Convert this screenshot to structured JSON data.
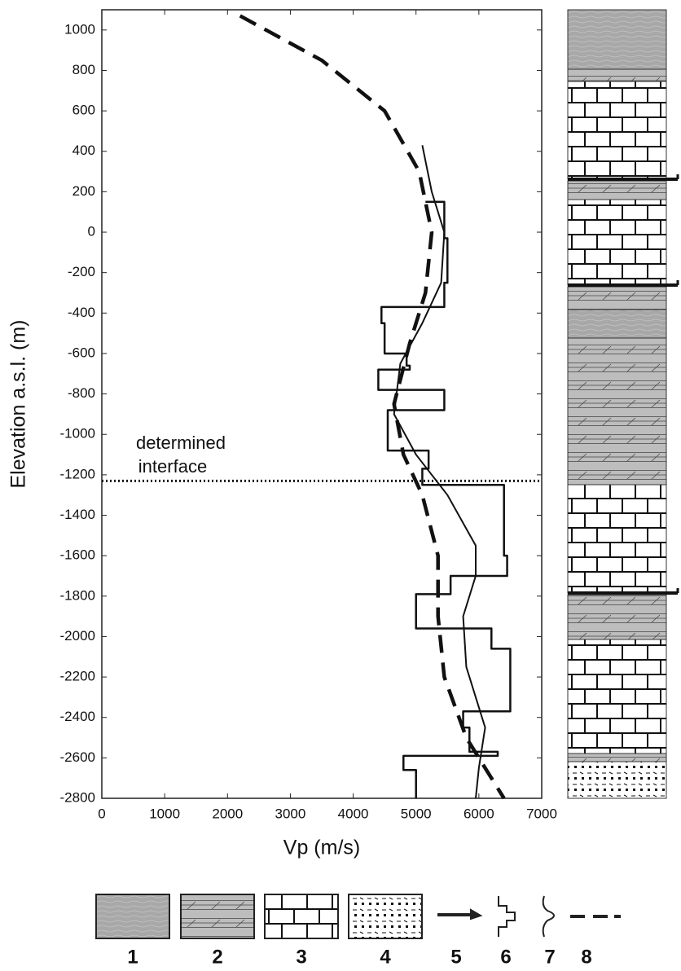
{
  "chart_data": {
    "type": "line",
    "xlabel": "Vp (m/s)",
    "ylabel": "Elevation a.s.l. (m)",
    "xlim": [
      0,
      7000
    ],
    "ylim": [
      -2800,
      1100
    ],
    "xticks": [
      0,
      1000,
      2000,
      3000,
      4000,
      5000,
      6000,
      7000
    ],
    "yticks": [
      -2800,
      -2600,
      -2400,
      -2200,
      -2000,
      -1800,
      -1600,
      -1400,
      -1200,
      -1000,
      -800,
      -600,
      -400,
      -200,
      0,
      200,
      400,
      600,
      800,
      1000
    ],
    "interface_elevation": -1230,
    "annotation_lines": [
      "determined",
      "interface"
    ],
    "legend_labels": [
      "1",
      "2",
      "3",
      "4",
      "5",
      "6",
      "7",
      "8"
    ],
    "series": [
      {
        "style": "step",
        "color": "#111111",
        "x": [
          5150,
          5450,
          5450,
          5500,
          5500,
          5450,
          5450,
          4450,
          4450,
          4500,
          4500,
          4850,
          4850,
          4900,
          4900,
          4400,
          4400,
          5450,
          5450,
          4550,
          4550,
          5200,
          5200,
          5100,
          5100,
          6400,
          6400,
          6450,
          6450,
          5550,
          5550,
          5000,
          5000,
          6200,
          6200,
          6500,
          6500,
          5750,
          5750,
          5850,
          5850,
          6300,
          6300,
          4800,
          4800,
          5000,
          5000
        ],
        "y": [
          150,
          150,
          -30,
          -30,
          -250,
          -250,
          -370,
          -370,
          -450,
          -450,
          -600,
          -600,
          -660,
          -660,
          -680,
          -680,
          -780,
          -780,
          -880,
          -880,
          -1080,
          -1080,
          -1170,
          -1170,
          -1250,
          -1250,
          -1600,
          -1600,
          -1700,
          -1700,
          -1790,
          -1790,
          -1960,
          -1960,
          -2060,
          -2060,
          -2370,
          -2370,
          -2450,
          -2450,
          -2570,
          -2570,
          -2590,
          -2590,
          -2660,
          -2660,
          -2800
        ]
      },
      {
        "style": "smooth",
        "color": "#111111",
        "x": [
          5100,
          5250,
          5450,
          5400,
          5100,
          4750,
          4650,
          5000,
          5500,
          5950,
          5950,
          5750,
          5800,
          6100,
          6000,
          5950
        ],
        "y": [
          430,
          200,
          0,
          -250,
          -450,
          -650,
          -900,
          -1100,
          -1300,
          -1550,
          -1700,
          -1900,
          -2150,
          -2450,
          -2650,
          -2800
        ]
      },
      {
        "style": "dashed",
        "color": "#111111",
        "x": [
          2200,
          3500,
          4500,
          5050,
          5250,
          5150,
          4900,
          4650,
          4800,
          5100,
          5350,
          5350,
          5450,
          5800,
          6100,
          6400
        ],
        "y": [
          1070,
          850,
          600,
          300,
          0,
          -300,
          -550,
          -850,
          -1100,
          -1300,
          -1600,
          -1900,
          -2200,
          -2500,
          -2650,
          -2800
        ]
      }
    ]
  }
}
